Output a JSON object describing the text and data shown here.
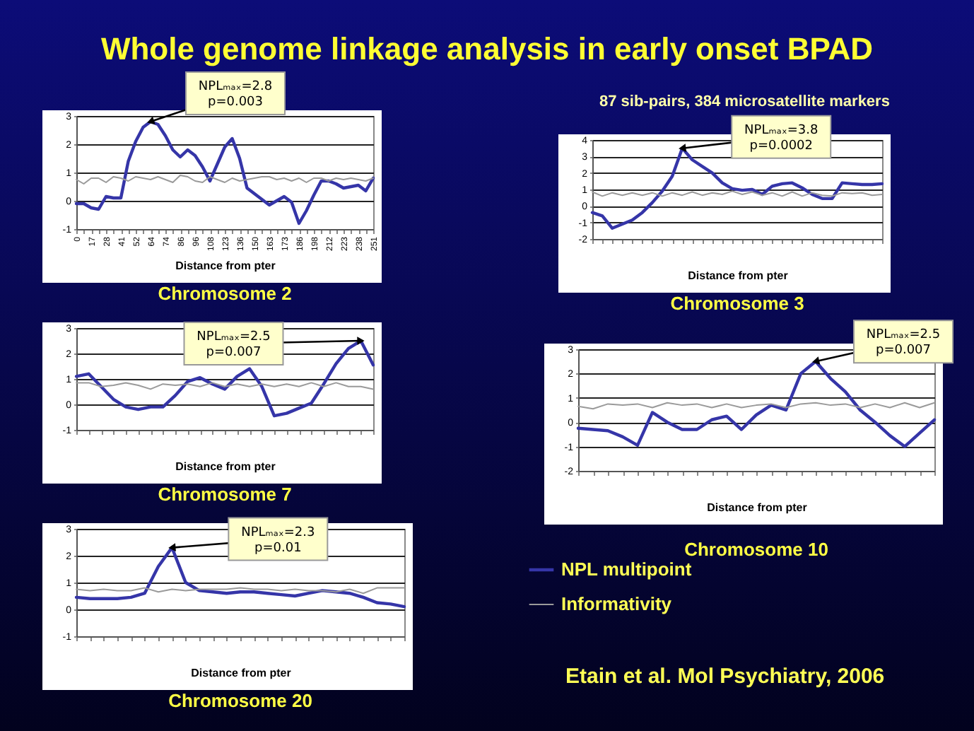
{
  "chart_data": [
    {
      "type": "other",
      "title": "Whole genome linkage analysis in early onset BPAD",
      "subtitle": "87 sib-pairs, 384 microsatellite markers",
      "annotations": [
        "Etain et al. Mol Psychiatry, 2006"
      ]
    },
    {
      "type": "line",
      "title": "Chromosome 2",
      "xlabel": "Distance from pter",
      "categories": [
        "0",
        null,
        "17",
        null,
        "28",
        null,
        "41",
        null,
        "52",
        null,
        "64",
        null,
        "74",
        null,
        "86",
        null,
        "96",
        null,
        "108",
        null,
        "123",
        null,
        "136",
        null,
        "150",
        null,
        "163",
        null,
        "173",
        null,
        "186",
        null,
        "198",
        null,
        "212",
        null,
        "223",
        null,
        "238",
        null,
        "251"
      ],
      "series": [
        {
          "color": "#3535a8",
          "values": [
            -0.1,
            -0.1,
            -0.25,
            -0.3,
            0.15,
            0.1,
            0.1,
            1.4,
            2.1,
            2.6,
            2.8,
            2.7,
            2.3,
            1.8,
            1.55,
            1.8,
            1.6,
            1.2,
            0.7,
            1.3,
            1.9,
            2.2,
            1.5,
            0.45,
            0.25,
            0.05,
            -0.15,
            0,
            0.15,
            -0.05,
            -0.8,
            -0.35,
            0.2,
            0.7,
            0.7,
            0.6,
            0.45,
            0.5,
            0.55,
            0.35,
            0.8
          ]
        },
        {
          "color": "#9a9a9a",
          "values": [
            0.75,
            0.6,
            0.8,
            0.8,
            0.65,
            0.85,
            0.8,
            0.7,
            0.85,
            0.8,
            0.75,
            0.85,
            0.75,
            0.65,
            0.9,
            0.85,
            0.7,
            0.65,
            0.85,
            0.75,
            0.65,
            0.8,
            0.7,
            0.75,
            0.8,
            0.85,
            0.85,
            0.75,
            0.8,
            0.7,
            0.8,
            0.65,
            0.8,
            0.8,
            0.7,
            0.8,
            0.75,
            0.8,
            0.75,
            0.7,
            0.8
          ]
        }
      ],
      "ylim": [
        -1,
        3
      ],
      "yticks": [
        -1,
        0,
        1,
        2,
        3
      ],
      "grid": "y",
      "annotations": [
        {
          "text": "NPLₘₐₓ=2.8\np=0.003",
          "x": "64",
          "y": 2.8
        }
      ]
    },
    {
      "type": "line",
      "title": "Chromosome 3",
      "xlabel": "Distance from pter",
      "categories": [
        null,
        null,
        null,
        null,
        null,
        null,
        null,
        null,
        null,
        null,
        null,
        null,
        null,
        null,
        null,
        null,
        null,
        null,
        null,
        null,
        null,
        null,
        null,
        null,
        null,
        null,
        null,
        null,
        null,
        null
      ],
      "tick_labels": "y",
      "series": [
        {
          "color": "#3535a8",
          "values": [
            -0.4,
            -0.6,
            -1.35,
            -1.1,
            -0.85,
            -0.4,
            0.2,
            0.9,
            1.8,
            3.5,
            2.8,
            2.4,
            2.0,
            1.4,
            1.05,
            0.95,
            1.0,
            0.7,
            1.2,
            1.35,
            1.4,
            1.1,
            0.7,
            0.45,
            0.45,
            1.4,
            1.35,
            1.3,
            1.3,
            1.35
          ]
        },
        {
          "color": "#9a9a9a",
          "values": [
            0.85,
            0.6,
            0.8,
            0.65,
            0.8,
            0.65,
            0.8,
            0.6,
            0.8,
            0.65,
            0.85,
            0.65,
            0.8,
            0.7,
            0.9,
            0.7,
            0.85,
            0.65,
            0.8,
            0.6,
            0.85,
            0.6,
            0.8,
            0.65,
            0.6,
            0.8,
            0.75,
            0.8,
            0.65,
            0.7
          ]
        }
      ],
      "ylim": [
        -2,
        4
      ],
      "yticks": [
        -2,
        -1,
        0,
        1,
        2,
        3,
        4
      ],
      "grid": "y",
      "annotations": [
        "NPLₘₐₓ=3.8\np=0.0002"
      ]
    },
    {
      "type": "line",
      "title": "Chromosome 7",
      "xlabel": "Distance from pter",
      "categories": [
        null,
        null,
        null,
        null,
        null,
        null,
        null,
        null,
        null,
        null,
        null,
        null,
        null,
        null,
        null,
        null,
        null,
        null,
        null,
        null,
        null,
        null,
        null,
        null,
        null
      ],
      "tick_labels": "y",
      "series": [
        {
          "color": "#3535a8",
          "values": [
            1.1,
            1.2,
            0.7,
            0.2,
            -0.1,
            -0.2,
            -0.1,
            -0.1,
            0.35,
            0.9,
            1.05,
            0.8,
            0.6,
            1.1,
            1.4,
            0.7,
            -0.45,
            -0.35,
            -0.15,
            0.05,
            0.8,
            1.6,
            2.2,
            2.5,
            1.55
          ]
        },
        {
          "color": "#9a9a9a",
          "values": [
            0.85,
            0.85,
            0.7,
            0.75,
            0.85,
            0.75,
            0.6,
            0.8,
            0.75,
            0.8,
            0.7,
            0.85,
            0.7,
            0.8,
            0.7,
            0.8,
            0.7,
            0.8,
            0.7,
            0.85,
            0.7,
            0.85,
            0.7,
            0.7,
            0.6
          ]
        }
      ],
      "ylim": [
        -1,
        3
      ],
      "yticks": [
        -1,
        0,
        1,
        2,
        3
      ],
      "grid": "y",
      "annotations": [
        "NPLₘₐₓ=2.5\np=0.007"
      ]
    },
    {
      "type": "line",
      "title": "Chromosome 10",
      "xlabel": "Distance from pter",
      "categories": [
        null,
        null,
        null,
        null,
        null,
        null,
        null,
        null,
        null,
        null,
        null,
        null,
        null,
        null,
        null,
        null,
        null,
        null,
        null,
        null,
        null,
        null,
        null,
        null,
        null
      ],
      "tick_labels": "y",
      "series": [
        {
          "name": "NPL multipoint",
          "color": "#3535a8",
          "values": [
            -0.25,
            -0.3,
            -0.35,
            -0.6,
            -0.95,
            0.4,
            0.0,
            -0.3,
            -0.3,
            0.1,
            0.25,
            -0.3,
            0.3,
            0.7,
            0.5,
            2.0,
            2.5,
            1.8,
            1.25,
            0.5,
            0.0,
            -0.55,
            -1.0,
            -0.45,
            0.1
          ]
        },
        {
          "name": "Informativity",
          "color": "#9a9a9a",
          "values": [
            0.65,
            0.55,
            0.75,
            0.7,
            0.75,
            0.6,
            0.8,
            0.7,
            0.75,
            0.6,
            0.75,
            0.6,
            0.7,
            0.75,
            0.6,
            0.75,
            0.8,
            0.7,
            0.75,
            0.6,
            0.75,
            0.6,
            0.8,
            0.6,
            0.8
          ]
        }
      ],
      "ylim": [
        -2,
        3
      ],
      "yticks": [
        -2,
        -1,
        0,
        1,
        2,
        3
      ],
      "grid": "y",
      "legend": "bottom",
      "annotations": [
        "NPLₘₐₓ=2.5\np=0.007"
      ]
    },
    {
      "type": "line",
      "title": "Chromosome 20",
      "xlabel": "Distance from pter",
      "categories": [
        null,
        null,
        null,
        null,
        null,
        null,
        null,
        null,
        null,
        null,
        null,
        null,
        null,
        null,
        null,
        null,
        null,
        null,
        null,
        null,
        null,
        null,
        null,
        null,
        null
      ],
      "tick_labels": "y",
      "series": [
        {
          "color": "#3535a8",
          "values": [
            0.45,
            0.4,
            0.4,
            0.4,
            0.45,
            0.6,
            1.6,
            2.3,
            1.0,
            0.7,
            0.65,
            0.6,
            0.65,
            0.65,
            0.6,
            0.55,
            0.5,
            0.6,
            0.7,
            0.65,
            0.6,
            0.45,
            0.25,
            0.2,
            0.1
          ]
        },
        {
          "color": "#9a9a9a",
          "values": [
            0.75,
            0.7,
            0.75,
            0.7,
            0.7,
            0.8,
            0.65,
            0.75,
            0.7,
            0.75,
            0.75,
            0.75,
            0.8,
            0.75,
            0.75,
            0.7,
            0.75,
            0.7,
            0.7,
            0.65,
            0.75,
            0.6,
            0.8,
            0.8,
            0.8
          ]
        }
      ],
      "ylim": [
        -1,
        3
      ],
      "yticks": [
        -1,
        0,
        1,
        2,
        3
      ],
      "grid": "y",
      "annotations": [
        "NPLₘₐₓ=2.3\np=0.01"
      ]
    }
  ]
}
